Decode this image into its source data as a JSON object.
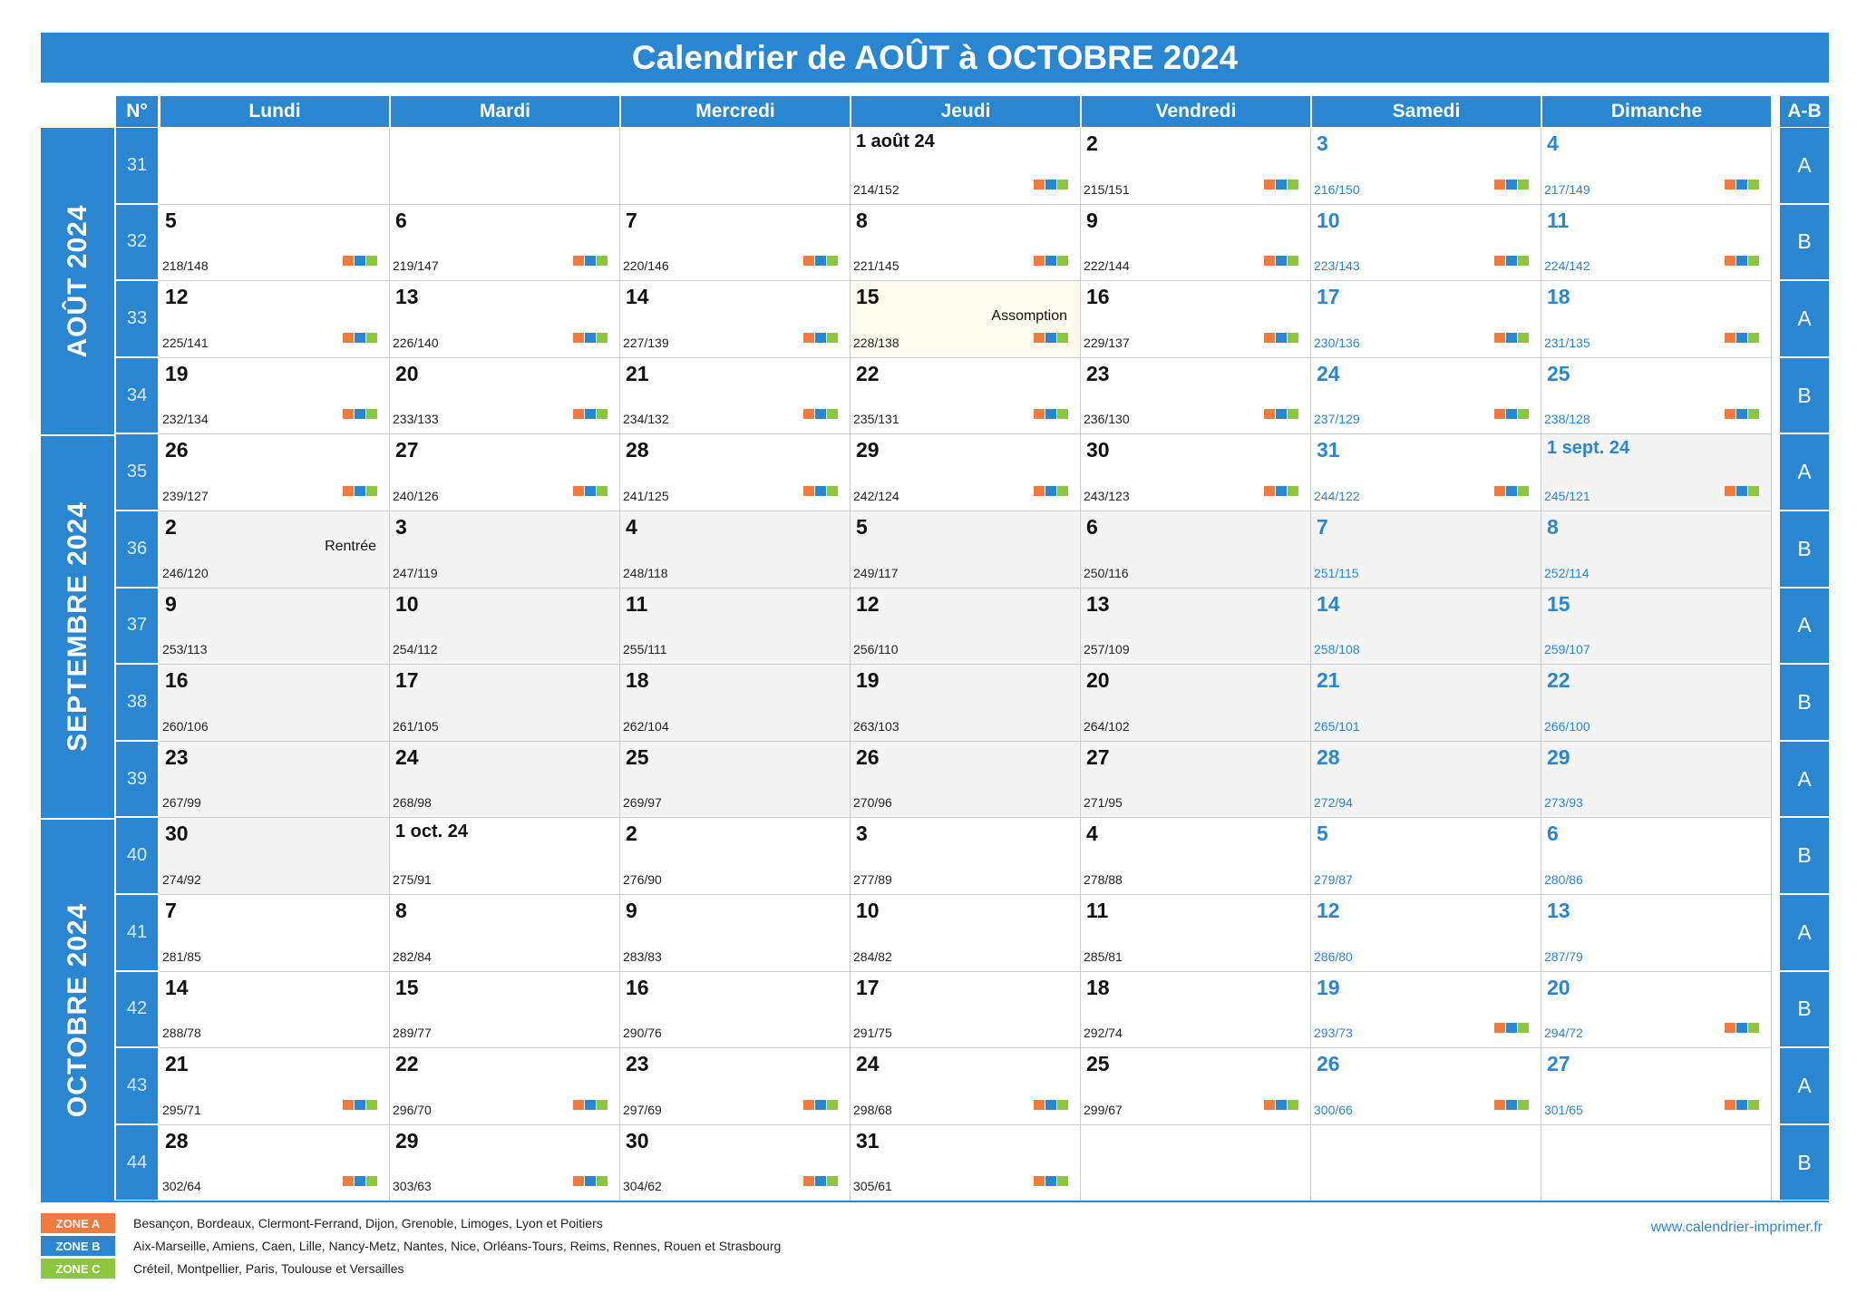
{
  "title": "Calendrier de AOÛT à OCTOBRE 2024",
  "header": {
    "week_no": "N°",
    "days": [
      "Lundi",
      "Mardi",
      "Mercredi",
      "Jeudi",
      "Vendredi",
      "Samedi",
      "Dimanche"
    ],
    "ab": "A-B"
  },
  "months": [
    {
      "label": "AOÛT 2024",
      "start_row": 0,
      "end_row": 4
    },
    {
      "label": "SEPTEMBRE 2024",
      "start_row": 4,
      "end_row": 9
    },
    {
      "label": "OCTOBRE 2024",
      "start_row": 9,
      "end_row": 14
    }
  ],
  "weeks": [
    {
      "no": "31",
      "ab": "A",
      "days": [
        null,
        null,
        null,
        {
          "label": "1 août 24",
          "count": "214/152",
          "zones": true
        },
        {
          "label": "2",
          "count": "215/151",
          "zones": true
        },
        {
          "label": "3",
          "count": "216/150",
          "zones": true
        },
        {
          "label": "4",
          "count": "217/149",
          "zones": true
        }
      ]
    },
    {
      "no": "32",
      "ab": "B",
      "days": [
        {
          "label": "5",
          "count": "218/148",
          "zones": true
        },
        {
          "label": "6",
          "count": "219/147",
          "zones": true
        },
        {
          "label": "7",
          "count": "220/146",
          "zones": true
        },
        {
          "label": "8",
          "count": "221/145",
          "zones": true
        },
        {
          "label": "9",
          "count": "222/144",
          "zones": true
        },
        {
          "label": "10",
          "count": "223/143",
          "zones": true
        },
        {
          "label": "11",
          "count": "224/142",
          "zones": true
        }
      ]
    },
    {
      "no": "33",
      "ab": "A",
      "days": [
        {
          "label": "12",
          "count": "225/141",
          "zones": true
        },
        {
          "label": "13",
          "count": "226/140",
          "zones": true
        },
        {
          "label": "14",
          "count": "227/139",
          "zones": true
        },
        {
          "label": "15",
          "count": "228/138",
          "zones": true,
          "event": "Assomption",
          "holiday": true
        },
        {
          "label": "16",
          "count": "229/137",
          "zones": true
        },
        {
          "label": "17",
          "count": "230/136",
          "zones": true
        },
        {
          "label": "18",
          "count": "231/135",
          "zones": true
        }
      ]
    },
    {
      "no": "34",
      "ab": "B",
      "days": [
        {
          "label": "19",
          "count": "232/134",
          "zones": true
        },
        {
          "label": "20",
          "count": "233/133",
          "zones": true
        },
        {
          "label": "21",
          "count": "234/132",
          "zones": true
        },
        {
          "label": "22",
          "count": "235/131",
          "zones": true
        },
        {
          "label": "23",
          "count": "236/130",
          "zones": true
        },
        {
          "label": "24",
          "count": "237/129",
          "zones": true
        },
        {
          "label": "25",
          "count": "238/128",
          "zones": true
        }
      ]
    },
    {
      "no": "35",
      "ab": "A",
      "days": [
        {
          "label": "26",
          "count": "239/127",
          "zones": true
        },
        {
          "label": "27",
          "count": "240/126",
          "zones": true
        },
        {
          "label": "28",
          "count": "241/125",
          "zones": true
        },
        {
          "label": "29",
          "count": "242/124",
          "zones": true
        },
        {
          "label": "30",
          "count": "243/123",
          "zones": true
        },
        {
          "label": "31",
          "count": "244/122",
          "zones": true
        },
        {
          "label": "1 sept. 24",
          "count": "245/121",
          "zones": true,
          "shade": true
        }
      ]
    },
    {
      "no": "36",
      "ab": "B",
      "days": [
        {
          "label": "2",
          "count": "246/120",
          "event": "Rentrée",
          "shade": true
        },
        {
          "label": "3",
          "count": "247/119",
          "shade": true
        },
        {
          "label": "4",
          "count": "248/118",
          "shade": true
        },
        {
          "label": "5",
          "count": "249/117",
          "shade": true
        },
        {
          "label": "6",
          "count": "250/116",
          "shade": true
        },
        {
          "label": "7",
          "count": "251/115",
          "shade": true
        },
        {
          "label": "8",
          "count": "252/114",
          "shade": true
        }
      ]
    },
    {
      "no": "37",
      "ab": "A",
      "days": [
        {
          "label": "9",
          "count": "253/113",
          "shade": true
        },
        {
          "label": "10",
          "count": "254/112",
          "shade": true
        },
        {
          "label": "11",
          "count": "255/111",
          "shade": true
        },
        {
          "label": "12",
          "count": "256/110",
          "shade": true
        },
        {
          "label": "13",
          "count": "257/109",
          "shade": true
        },
        {
          "label": "14",
          "count": "258/108",
          "shade": true
        },
        {
          "label": "15",
          "count": "259/107",
          "shade": true
        }
      ]
    },
    {
      "no": "38",
      "ab": "B",
      "days": [
        {
          "label": "16",
          "count": "260/106",
          "shade": true
        },
        {
          "label": "17",
          "count": "261/105",
          "shade": true
        },
        {
          "label": "18",
          "count": "262/104",
          "shade": true
        },
        {
          "label": "19",
          "count": "263/103",
          "shade": true
        },
        {
          "label": "20",
          "count": "264/102",
          "shade": true
        },
        {
          "label": "21",
          "count": "265/101",
          "shade": true
        },
        {
          "label": "22",
          "count": "266/100",
          "shade": true
        }
      ]
    },
    {
      "no": "39",
      "ab": "A",
      "days": [
        {
          "label": "23",
          "count": "267/99",
          "shade": true
        },
        {
          "label": "24",
          "count": "268/98",
          "shade": true
        },
        {
          "label": "25",
          "count": "269/97",
          "shade": true
        },
        {
          "label": "26",
          "count": "270/96",
          "shade": true
        },
        {
          "label": "27",
          "count": "271/95",
          "shade": true
        },
        {
          "label": "28",
          "count": "272/94",
          "shade": true
        },
        {
          "label": "29",
          "count": "273/93",
          "shade": true
        }
      ]
    },
    {
      "no": "40",
      "ab": "B",
      "days": [
        {
          "label": "30",
          "count": "274/92",
          "shade": true
        },
        {
          "label": "1 oct. 24",
          "count": "275/91"
        },
        {
          "label": "2",
          "count": "276/90"
        },
        {
          "label": "3",
          "count": "277/89"
        },
        {
          "label": "4",
          "count": "278/88"
        },
        {
          "label": "5",
          "count": "279/87"
        },
        {
          "label": "6",
          "count": "280/86"
        }
      ]
    },
    {
      "no": "41",
      "ab": "A",
      "days": [
        {
          "label": "7",
          "count": "281/85"
        },
        {
          "label": "8",
          "count": "282/84"
        },
        {
          "label": "9",
          "count": "283/83"
        },
        {
          "label": "10",
          "count": "284/82"
        },
        {
          "label": "11",
          "count": "285/81"
        },
        {
          "label": "12",
          "count": "286/80"
        },
        {
          "label": "13",
          "count": "287/79"
        }
      ]
    },
    {
      "no": "42",
      "ab": "B",
      "days": [
        {
          "label": "14",
          "count": "288/78"
        },
        {
          "label": "15",
          "count": "289/77"
        },
        {
          "label": "16",
          "count": "290/76"
        },
        {
          "label": "17",
          "count": "291/75"
        },
        {
          "label": "18",
          "count": "292/74"
        },
        {
          "label": "19",
          "count": "293/73",
          "zones": true
        },
        {
          "label": "20",
          "count": "294/72",
          "zones": true
        }
      ]
    },
    {
      "no": "43",
      "ab": "A",
      "days": [
        {
          "label": "21",
          "count": "295/71",
          "zones": true
        },
        {
          "label": "22",
          "count": "296/70",
          "zones": true
        },
        {
          "label": "23",
          "count": "297/69",
          "zones": true
        },
        {
          "label": "24",
          "count": "298/68",
          "zones": true
        },
        {
          "label": "25",
          "count": "299/67",
          "zones": true
        },
        {
          "label": "26",
          "count": "300/66",
          "zones": true
        },
        {
          "label": "27",
          "count": "301/65",
          "zones": true
        }
      ]
    },
    {
      "no": "44",
      "ab": "B",
      "days": [
        {
          "label": "28",
          "count": "302/64",
          "zones": true
        },
        {
          "label": "29",
          "count": "303/63",
          "zones": true
        },
        {
          "label": "30",
          "count": "304/62",
          "zones": true
        },
        {
          "label": "31",
          "count": "305/61",
          "zones": true
        },
        null,
        null,
        null
      ]
    }
  ],
  "legend": [
    {
      "tag": "ZONE A",
      "color": "#F07B3F",
      "text": "Besançon, Bordeaux, Clermont-Ferrand, Dijon, Grenoble, Limoges, Lyon et Poitiers"
    },
    {
      "tag": "ZONE B",
      "color": "#2A86D1",
      "text": "Aix-Marseille, Amiens, Caen, Lille, Nancy-Metz, Nantes, Nice, Orléans-Tours, Reims, Rennes, Rouen et Strasbourg"
    },
    {
      "tag": "ZONE C",
      "color": "#8CC63F",
      "text": "Créteil, Montpellier, Paris, Toulouse et Versailles"
    }
  ],
  "website": "www.calendrier-imprimer.fr",
  "colors": {
    "accent": "#2A86D1",
    "zone_a": "#F07B3F",
    "zone_b": "#2A86D1",
    "zone_c": "#8CC63F"
  }
}
